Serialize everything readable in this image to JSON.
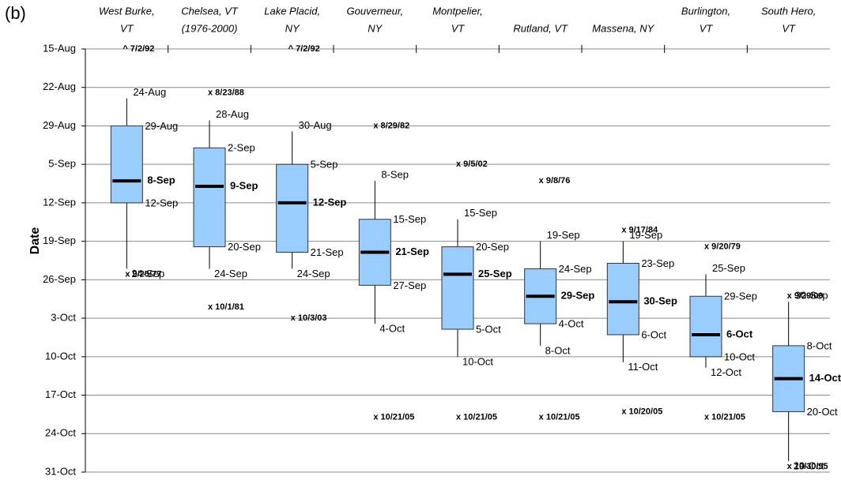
{
  "chart_data": {
    "type": "box",
    "panel_label": "(b)",
    "y_label": "Date",
    "categories": [
      [
        "West Burke,",
        "VT"
      ],
      [
        "Chelsea, VT",
        "(1976-2000)"
      ],
      [
        "Lake Placid,",
        "NY"
      ],
      [
        "Gouverneur,",
        "NY"
      ],
      [
        "Montpelier,",
        "VT"
      ],
      [
        "Rutland, VT"
      ],
      [
        "Massena, NY"
      ],
      [
        "Burlington,",
        "VT"
      ],
      [
        "South Hero,",
        "VT"
      ]
    ],
    "ylim": [
      304,
      227
    ],
    "yticks": [
      {
        "value": 227,
        "label": "15-Aug"
      },
      {
        "value": 234,
        "label": "22-Aug"
      },
      {
        "value": 241,
        "label": "29-Aug"
      },
      {
        "value": 248,
        "label": "5-Sep"
      },
      {
        "value": 255,
        "label": "12-Sep"
      },
      {
        "value": 262,
        "label": "19-Sep"
      },
      {
        "value": 269,
        "label": "26-Sep"
      },
      {
        "value": 276,
        "label": "3-Oct"
      },
      {
        "value": 283,
        "label": "10-Oct"
      },
      {
        "value": 290,
        "label": "17-Oct"
      },
      {
        "value": 297,
        "label": "24-Oct"
      },
      {
        "value": 304,
        "label": "31-Oct"
      }
    ],
    "grid": true,
    "box_color": "#99ccff",
    "outlier_color": "#4a1a1a",
    "boxes": [
      {
        "values": [
          236,
          241,
          251,
          255,
          267
        ],
        "value_labels": [
          "24-Aug",
          "29-Aug",
          "8-Sep",
          "12-Sep",
          "24-Sep"
        ],
        "outliers": [
          {
            "value": 268,
            "label": "x 9/25/77"
          }
        ],
        "above_range": [
          "^ 7/2/92"
        ]
      },
      {
        "values": [
          240,
          245,
          252,
          263,
          267
        ],
        "value_labels": [
          "28-Aug",
          "2-Sep",
          "9-Sep",
          "20-Sep",
          "24-Sep"
        ],
        "outliers": [
          {
            "value": 235,
            "label": "x 8/23/88"
          },
          {
            "value": 274,
            "label": "x 10/1/81"
          }
        ]
      },
      {
        "values": [
          242,
          248,
          255,
          264,
          267
        ],
        "value_labels": [
          "30-Aug",
          "5-Sep",
          "12-Sep",
          "21-Sep",
          "24-Sep"
        ],
        "outliers": [
          {
            "value": 276,
            "label": "x 10/3/03"
          }
        ],
        "above_range": [
          "^ 7/2/92"
        ]
      },
      {
        "values": [
          251,
          258,
          264,
          270,
          277
        ],
        "value_labels": [
          "8-Sep",
          "15-Sep",
          "21-Sep",
          "27-Sep",
          "4-Oct"
        ],
        "outliers": [
          {
            "value": 241,
            "label": "x 8/29/82"
          },
          {
            "value": 294,
            "label": "x 10/21/05"
          }
        ]
      },
      {
        "values": [
          258,
          263,
          268,
          278,
          283
        ],
        "value_labels": [
          "15-Sep",
          "20-Sep",
          "25-Sep",
          "5-Oct",
          "10-Oct"
        ],
        "outliers": [
          {
            "value": 248,
            "label": "x 9/5/02"
          },
          {
            "value": 294,
            "label": "x 10/21/05"
          }
        ]
      },
      {
        "values": [
          262,
          267,
          272,
          277,
          281
        ],
        "value_labels": [
          "19-Sep",
          "24-Sep",
          "29-Sep",
          "4-Oct",
          "8-Oct"
        ],
        "outliers": [
          {
            "value": 251,
            "label": "x 9/8/76"
          },
          {
            "value": 294,
            "label": "x 10/21/05"
          }
        ]
      },
      {
        "values": [
          262,
          266,
          273,
          279,
          284
        ],
        "value_labels": [
          "19-Sep",
          "23-Sep",
          "30-Sep",
          "6-Oct",
          "11-Oct"
        ],
        "outliers": [
          {
            "value": 260,
            "label": "x 9/17/84"
          },
          {
            "value": 293,
            "label": "x 10/20/05"
          }
        ]
      },
      {
        "values": [
          268,
          272,
          279,
          283,
          285
        ],
        "value_labels": [
          "25-Sep",
          "29-Sep",
          "6-Oct",
          "10-Oct",
          "12-Oct"
        ],
        "outliers": [
          {
            "value": 263,
            "label": "x 9/20/79"
          },
          {
            "value": 294,
            "label": "x 10/21/05"
          }
        ]
      },
      {
        "values": [
          273,
          281,
          287,
          293,
          302
        ],
        "value_labels": [
          "30-Sep",
          "8-Oct",
          "14-Oct",
          "20-Oct",
          "29-Oct"
        ],
        "outliers": [
          {
            "value": 272,
            "label": "x 9/29/00"
          },
          {
            "value": 303,
            "label": "x 10/30/95"
          }
        ]
      }
    ]
  }
}
